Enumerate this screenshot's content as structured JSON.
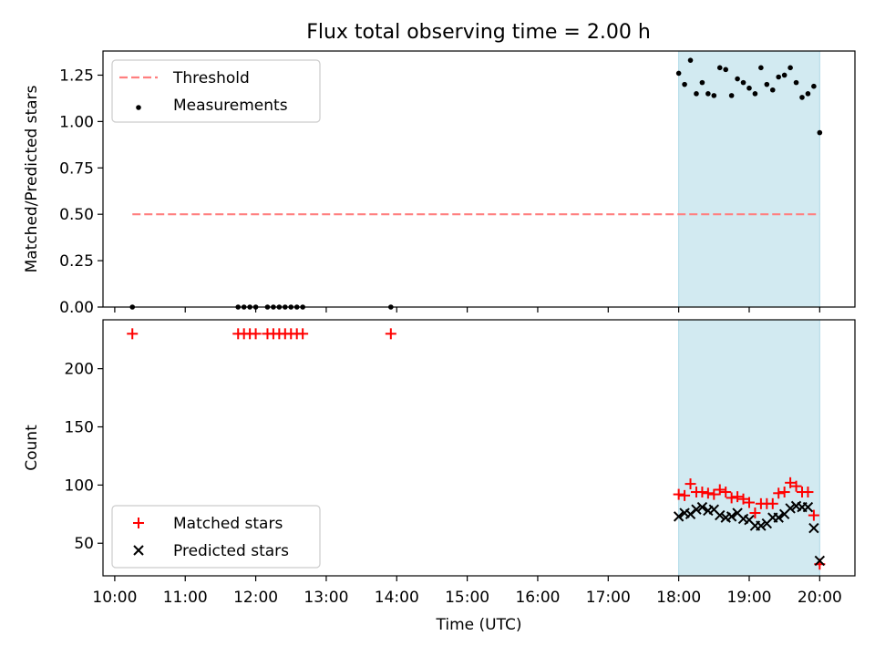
{
  "title": "Flux total observing time = 2.00 h",
  "chart_data": [
    {
      "type": "scatter",
      "panel": "top",
      "ylabel": "Matched/Predicted stars",
      "ylim": [
        0,
        1.38
      ],
      "yticks": [
        "0.00",
        "0.25",
        "0.50",
        "0.75",
        "1.00",
        "1.25"
      ],
      "shaded_interval": {
        "x": [
          "18:00",
          "20:00"
        ],
        "color": "#add8e6"
      },
      "threshold": {
        "name": "Threshold",
        "value": 0.5,
        "x_range": [
          "10:15",
          "20:00"
        ],
        "color": "#ff7f7f",
        "style": "dashed"
      },
      "legend": {
        "position": "top-left",
        "entries": [
          "Threshold",
          "Measurements"
        ]
      },
      "series": [
        {
          "name": "Measurements",
          "color": "#000000",
          "marker": "dot",
          "x": [
            "10:15",
            "11:45",
            "11:50",
            "11:55",
            "12:00",
            "12:10",
            "12:15",
            "12:20",
            "12:25",
            "12:30",
            "12:35",
            "12:40",
            "13:55",
            "18:00",
            "18:05",
            "18:10",
            "18:15",
            "18:20",
            "18:25",
            "18:30",
            "18:35",
            "18:40",
            "18:45",
            "18:50",
            "18:55",
            "19:00",
            "19:05",
            "19:10",
            "19:15",
            "19:20",
            "19:25",
            "19:30",
            "19:35",
            "19:40",
            "19:45",
            "19:50",
            "19:55",
            "20:00"
          ],
          "y": [
            0,
            0,
            0,
            0,
            0,
            0,
            0,
            0,
            0,
            0,
            0,
            0,
            0,
            1.26,
            1.2,
            1.33,
            1.15,
            1.21,
            1.15,
            1.14,
            1.29,
            1.28,
            1.14,
            1.23,
            1.21,
            1.18,
            1.15,
            1.29,
            1.2,
            1.17,
            1.24,
            1.25,
            1.29,
            1.21,
            1.13,
            1.15,
            1.19,
            0.94
          ]
        }
      ]
    },
    {
      "type": "scatter",
      "panel": "bottom",
      "xlabel": "Time (UTC)",
      "ylabel": "Count",
      "ylim": [
        22,
        242
      ],
      "yticks": [
        "50",
        "100",
        "150",
        "200"
      ],
      "xticks": [
        "10:00",
        "11:00",
        "12:00",
        "13:00",
        "14:00",
        "15:00",
        "16:00",
        "17:00",
        "18:00",
        "19:00",
        "20:00"
      ],
      "shaded_interval": {
        "x": [
          "18:00",
          "20:00"
        ],
        "color": "#add8e6"
      },
      "legend": {
        "position": "bottom-left",
        "entries": [
          "Matched stars",
          "Predicted stars"
        ]
      },
      "series": [
        {
          "name": "Matched stars",
          "color": "#ff0000",
          "marker": "plus",
          "x": [
            "10:15",
            "11:45",
            "11:50",
            "11:55",
            "12:00",
            "12:10",
            "12:15",
            "12:20",
            "12:25",
            "12:30",
            "12:35",
            "12:40",
            "13:55",
            "18:00",
            "18:05",
            "18:10",
            "18:15",
            "18:20",
            "18:25",
            "18:30",
            "18:35",
            "18:40",
            "18:45",
            "18:50",
            "18:55",
            "19:00",
            "19:05",
            "19:10",
            "19:15",
            "19:20",
            "19:25",
            "19:30",
            "19:35",
            "19:40",
            "19:45",
            "19:50",
            "19:55",
            "20:00"
          ],
          "y": [
            230,
            230,
            230,
            230,
            230,
            230,
            230,
            230,
            230,
            230,
            230,
            230,
            230,
            92,
            91,
            101,
            94,
            94,
            93,
            92,
            96,
            94,
            89,
            90,
            88,
            85,
            76,
            84,
            84,
            84,
            93,
            94,
            102,
            99,
            94,
            94,
            74,
            32
          ]
        },
        {
          "name": "Predicted stars",
          "color": "#000000",
          "marker": "x",
          "x": [
            "18:00",
            "18:05",
            "18:10",
            "18:15",
            "18:20",
            "18:25",
            "18:30",
            "18:35",
            "18:40",
            "18:45",
            "18:50",
            "18:55",
            "19:00",
            "19:05",
            "19:10",
            "19:15",
            "19:20",
            "19:25",
            "19:30",
            "19:35",
            "19:40",
            "19:45",
            "19:50",
            "19:55",
            "20:00"
          ],
          "y": [
            73,
            76,
            75,
            79,
            81,
            78,
            79,
            74,
            72,
            73,
            76,
            71,
            70,
            65,
            65,
            67,
            72,
            72,
            75,
            80,
            82,
            81,
            81,
            63,
            35
          ]
        }
      ]
    }
  ]
}
